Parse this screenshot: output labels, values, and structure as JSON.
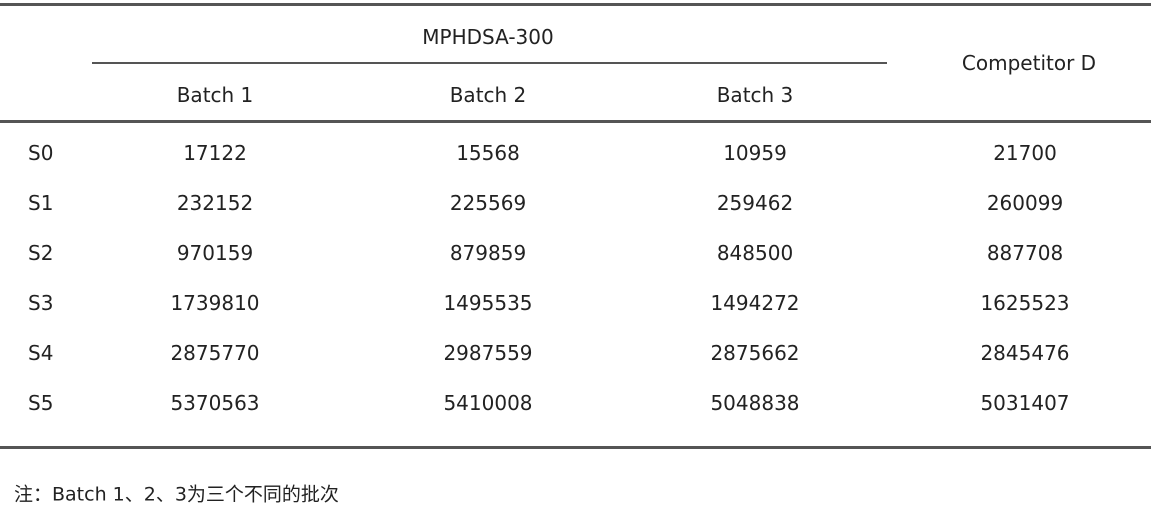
{
  "table": {
    "group_header": "MPHDSA-300",
    "competitor_header": "Competitor D",
    "sub_headers": [
      "Batch 1",
      "Batch 2",
      "Batch 3"
    ],
    "rows": [
      {
        "label": "S0",
        "values": [
          "17122",
          "15568",
          "10959",
          "21700"
        ]
      },
      {
        "label": "S1",
        "values": [
          "232152",
          "225569",
          "259462",
          "260099"
        ]
      },
      {
        "label": "S2",
        "values": [
          "970159",
          "879859",
          "848500",
          "887708"
        ]
      },
      {
        "label": "S3",
        "values": [
          "1739810",
          "1495535",
          "1494272",
          "1625523"
        ]
      },
      {
        "label": "S4",
        "values": [
          "2875770",
          "2987559",
          "2875662",
          "2845476"
        ]
      },
      {
        "label": "S5",
        "values": [
          "5370563",
          "5410008",
          "5048838",
          "5031407"
        ]
      }
    ]
  },
  "note": "注：Batch 1、2、3为三个不同的批次"
}
